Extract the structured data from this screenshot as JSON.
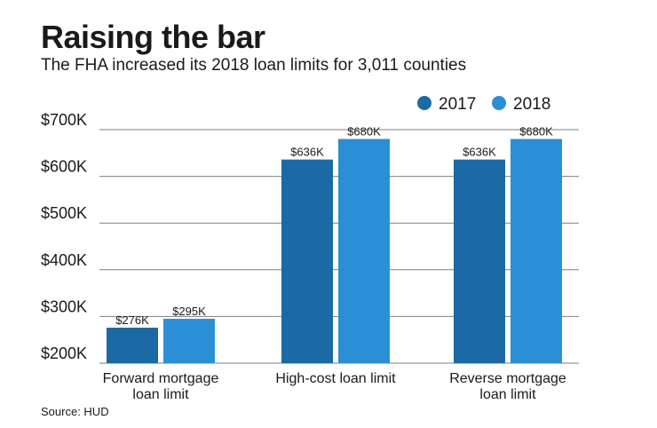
{
  "title": "Raising the bar",
  "subtitle": "The FHA increased its 2018 loan limits for 3,011 counties",
  "source": "Source: HUD",
  "colors": {
    "series_2017": "#1b6aa5",
    "series_2018": "#2b8fd6",
    "gridline": "#7f7f7f"
  },
  "chart_data": {
    "type": "bar",
    "categories": [
      [
        "Forward mortgage",
        "loan limit"
      ],
      [
        "High-cost loan limit"
      ],
      [
        "Reverse mortgage",
        "loan limit"
      ]
    ],
    "series": [
      {
        "name": "2017",
        "values": [
          276,
          636,
          636
        ],
        "labels": [
          "$276K",
          "$636K",
          "$636K"
        ]
      },
      {
        "name": "2018",
        "values": [
          295,
          680,
          680
        ],
        "labels": [
          "$295K",
          "$680K",
          "$680K"
        ]
      }
    ],
    "y_ticks": [
      {
        "value": 200,
        "label": "$200K"
      },
      {
        "value": 300,
        "label": "$300K"
      },
      {
        "value": 400,
        "label": "$400K"
      },
      {
        "value": 500,
        "label": "$500K"
      },
      {
        "value": 600,
        "label": "$600K"
      },
      {
        "value": 700,
        "label": "$700K"
      }
    ],
    "ylim": [
      200,
      700
    ],
    "grid": true,
    "legend_position": "top-right"
  }
}
